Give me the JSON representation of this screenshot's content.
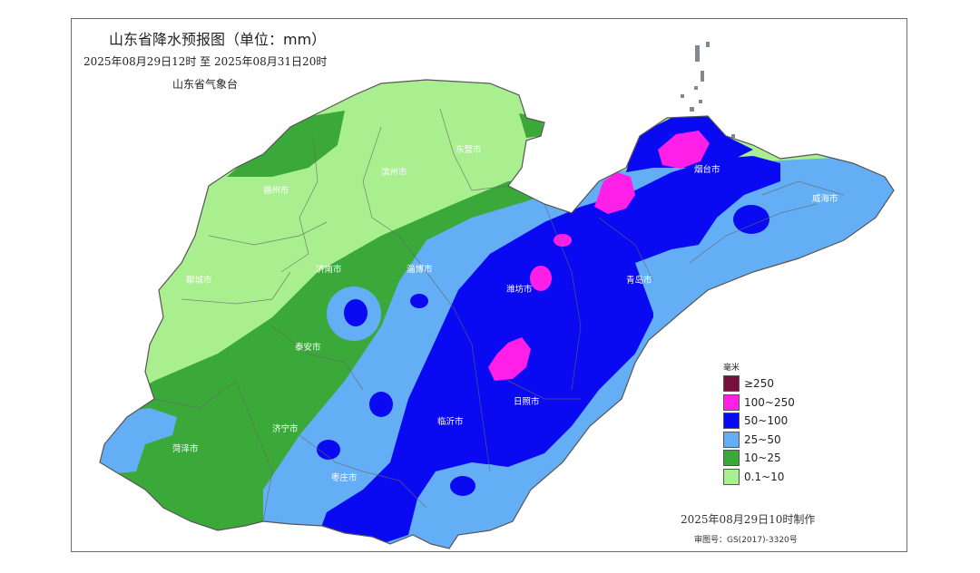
{
  "header": {
    "title": "山东省降水预报图（单位：mm）",
    "period": "2025年08月29日12时  至  2025年08月31日20时",
    "issuer": "山东省气象台"
  },
  "cities": {
    "dezhou": "德州市",
    "binzhou": "滨州市",
    "dongying": "东营市",
    "yantai": "烟台市",
    "weihai": "威海市",
    "liaocheng": "聊城市",
    "jinan": "济南市",
    "zibo": "淄博市",
    "weifang": "潍坊市",
    "qingdao": "青岛市",
    "taian": "泰安市",
    "rizhao": "日照市",
    "linyi": "临沂市",
    "jining": "济宁市",
    "heze": "菏泽市",
    "zaozhuang": "枣庄市"
  },
  "legend": {
    "unit": "毫米",
    "items": [
      {
        "label": "≥250",
        "color": "#7a0f3d"
      },
      {
        "label": "100~250",
        "color": "#ff1fe6"
      },
      {
        "label": "50~100",
        "color": "#0a0af2"
      },
      {
        "label": "25~50",
        "color": "#64aef6"
      },
      {
        "label": "10~25",
        "color": "#3aa93a"
      },
      {
        "label": "0.1~10",
        "color": "#a9ef8f"
      }
    ]
  },
  "footer": {
    "made": "2025年08月29日10时制作",
    "approval": "审图号：GS(2017)-3320号"
  }
}
